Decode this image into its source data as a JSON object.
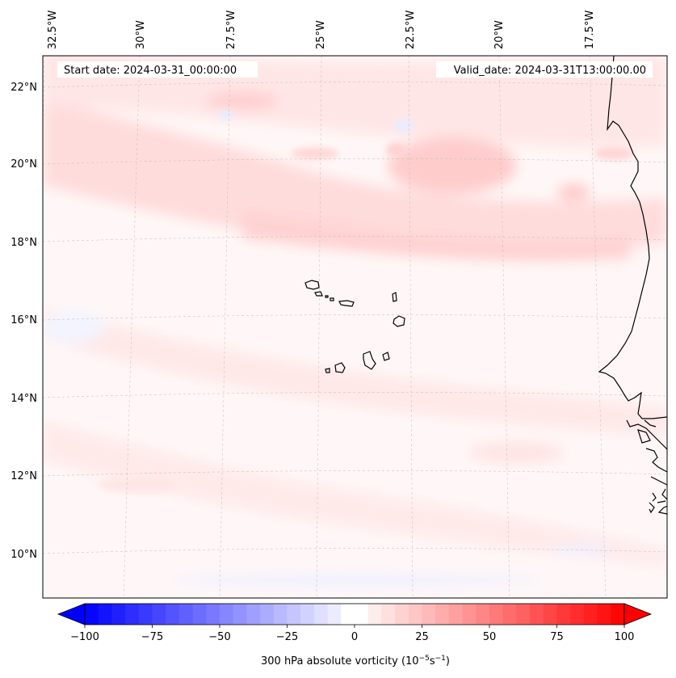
{
  "map": {
    "header": {
      "start_date": "Start date: 2024-03-31_00:00:00",
      "valid_date": "Valid_date: 2024-03-31T13:00:00.00"
    },
    "longitude_labels": [
      "32.5°W",
      "30°W",
      "27.5°W",
      "25°W",
      "22.5°W",
      "20°W",
      "17.5°W"
    ],
    "latitude_labels": [
      "22°N",
      "20°N",
      "18°N",
      "16°N",
      "14°N",
      "12°N",
      "10°N"
    ],
    "field": "300 hPa absolute vorticity",
    "colors": {
      "negative_max": "#0000ff",
      "positive_max": "#ff0000",
      "zero": "#ffffff",
      "coastline": "#000000",
      "gridline": "#bbbbbb"
    }
  },
  "colorbar": {
    "ticks": [
      "−100",
      "−75",
      "−50",
      "−25",
      "0",
      "25",
      "50",
      "75",
      "100"
    ],
    "tick_values": [
      -100,
      -75,
      -50,
      -25,
      0,
      25,
      50,
      75,
      100
    ],
    "range": [
      -100,
      100
    ],
    "label_prefix": "300 hPa absolute vorticity (10",
    "label_exp1": "−5",
    "label_mid": "s",
    "label_exp2": "−1",
    "label_suffix": ")"
  }
}
